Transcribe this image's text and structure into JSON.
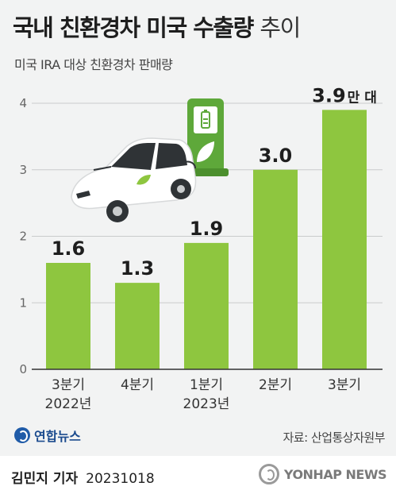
{
  "header": {
    "title_bold": "국내 친환경차 미국 수출량",
    "title_light": "추이",
    "subtitle": "미국 IRA 대상 친환경차 판매량"
  },
  "colors": {
    "bar": "#8ec63f",
    "grid": "#c9cbcc",
    "axis": "#333333"
  },
  "chart_data": {
    "type": "bar",
    "categories": [
      "3분기",
      "4분기",
      "1분기",
      "2분기",
      "3분기"
    ],
    "category_years": [
      "2022년",
      "",
      "2023년",
      "",
      ""
    ],
    "values": [
      1.6,
      1.3,
      1.9,
      3.0,
      3.9
    ],
    "value_labels": [
      "1.6",
      "1.3",
      "1.9",
      "3.0",
      "3.9"
    ],
    "unit": "만 대",
    "ylim": [
      0,
      4
    ],
    "yticks": [
      0,
      1,
      2,
      3,
      4
    ],
    "grid": true,
    "title": "국내 친환경차 미국 수출량 추이",
    "subtitle": "미국 IRA 대상 친환경차 판매량"
  },
  "footer": {
    "agency": "연합뉴스",
    "source": "자료: 산업통상자원부",
    "reporter": "김민지 기자",
    "date": "20231018",
    "watermark": "YONHAP NEWS"
  },
  "icons": [
    "car-illustration",
    "charger-icon",
    "leaf-icon"
  ]
}
